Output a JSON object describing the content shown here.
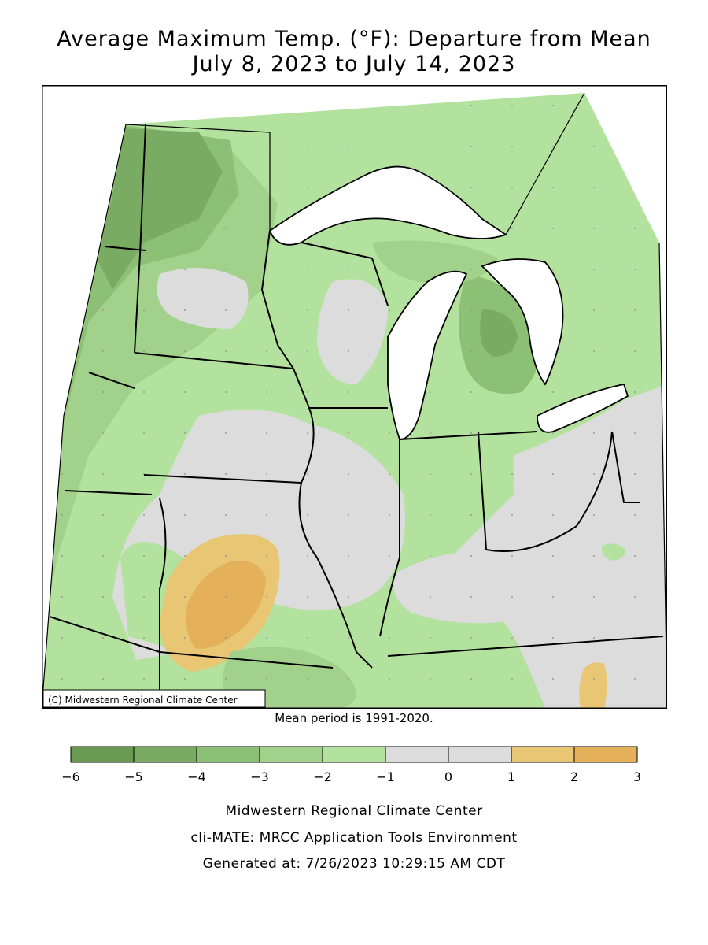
{
  "title_line1": "Average Maximum Temp. (°F): Departure from Mean",
  "title_line2": "July 8, 2023 to July 14, 2023",
  "map": {
    "credit": "(C) Midwestern Regional Climate Center",
    "colors": {
      "minus6_minus5": "#6a9a52",
      "minus5_minus4": "#7aab62",
      "minus4_minus3": "#8cc074",
      "minus3_minus2": "#a1d18a",
      "minus2_minus1": "#b3e29e",
      "minus1_0": "#dcdcdc",
      "zero_1": "#dcdcdc",
      "one_2": "#e8c673",
      "two_3": "#e5b05a",
      "water": "#ffffff"
    }
  },
  "mean_note": "Mean period is 1991-2020.",
  "legend": {
    "ticks": [
      "−6",
      "−5",
      "−4",
      "−3",
      "−2",
      "−1",
      "0",
      "1",
      "2",
      "3"
    ],
    "colors": [
      "#6a9a52",
      "#7aab62",
      "#8cc074",
      "#a1d18a",
      "#b3e29e",
      "#dcdcdc",
      "#dcdcdc",
      "#e8c673",
      "#e5b05a"
    ]
  },
  "footer": {
    "line1": "Midwestern Regional Climate Center",
    "line2": "cli-MATE: MRCC Application Tools Environment",
    "line3": "Generated at: 7/26/2023 10:29:15 AM CDT"
  }
}
